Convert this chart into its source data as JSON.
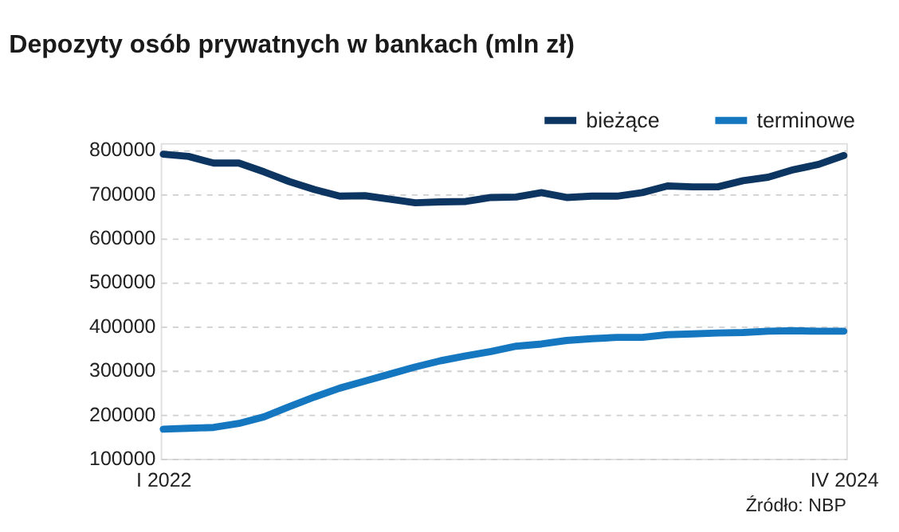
{
  "chart_data": {
    "type": "line",
    "title": "Depozyty osób prywatnych w bankach (mln zł)",
    "categories": [
      "I 2022",
      null,
      null,
      null,
      null,
      null,
      null,
      null,
      null,
      null,
      null,
      null,
      null,
      null,
      null,
      null,
      null,
      null,
      null,
      null,
      null,
      null,
      null,
      null,
      null,
      null,
      null,
      "IV 2024"
    ],
    "series": [
      {
        "name": "bieżące",
        "color": "#0d3561",
        "values": [
          790000,
          785000,
          770000,
          770000,
          750000,
          728000,
          710000,
          695000,
          696000,
          688000,
          680000,
          682000,
          683000,
          692000,
          693000,
          703000,
          692000,
          695000,
          695000,
          703000,
          718000,
          716000,
          716000,
          730000,
          738000,
          755000,
          767000,
          787000
        ]
      },
      {
        "name": "terminowe",
        "color": "#1577c0",
        "values": [
          167000,
          169000,
          171000,
          180000,
          195000,
          218000,
          240000,
          260000,
          276000,
          292000,
          308000,
          322000,
          333000,
          343000,
          355000,
          360000,
          368000,
          372000,
          375000,
          375000,
          381000,
          383000,
          385000,
          386000,
          389000,
          390000,
          389000,
          389000
        ]
      }
    ],
    "ylim": [
      100000,
      815000
    ],
    "yticks": [
      100000,
      200000,
      300000,
      400000,
      500000,
      600000,
      700000,
      800000
    ],
    "grid": "y",
    "legend": "top right",
    "line_style": "solid",
    "annotations": [
      "Źródło: NBP"
    ]
  }
}
